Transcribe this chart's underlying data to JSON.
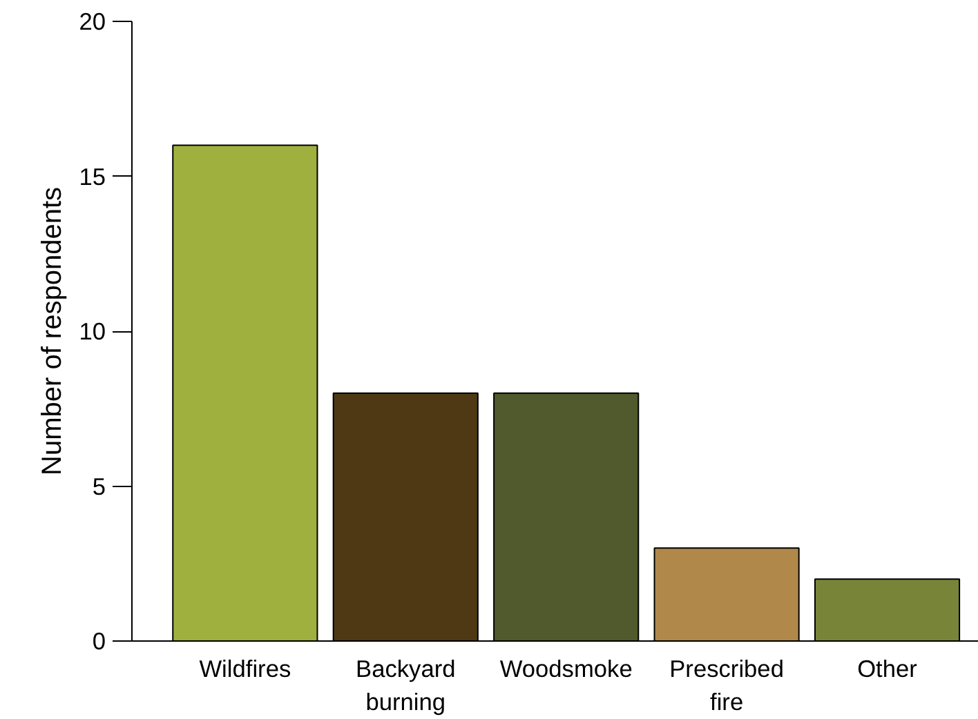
{
  "chart_data": {
    "type": "bar",
    "ylabel": "Number of respondents",
    "categories": [
      "Wildfires",
      "Backyard burning",
      "Woodsmoke",
      "Prescribed fire",
      "Other"
    ],
    "values": [
      16,
      8,
      8,
      3,
      2
    ],
    "colors": [
      "#9fb03e",
      "#4f3914",
      "#505a2c",
      "#b0884a",
      "#788538"
    ],
    "ylim": [
      0,
      20
    ],
    "yticks": [
      0,
      5,
      10,
      15,
      20
    ],
    "grid": false
  }
}
